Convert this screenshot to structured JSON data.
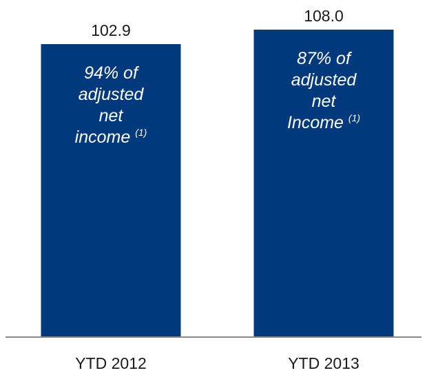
{
  "chart_data": {
    "type": "bar",
    "categories": [
      "YTD 2012",
      "YTD 2013"
    ],
    "values": [
      102.9,
      108.0
    ],
    "value_labels": [
      "102.9",
      "108.0"
    ],
    "bar_notes": [
      {
        "lines": [
          "94% of",
          "adjusted",
          "net",
          "income"
        ],
        "superscript": "(1)"
      },
      {
        "lines": [
          "87% of",
          "adjusted",
          "net",
          "Income"
        ],
        "superscript": "(1)"
      }
    ],
    "ylim": [
      0,
      108.0
    ],
    "grid": false,
    "colors": {
      "bar": "#003A7D",
      "axis": "#888888"
    }
  }
}
